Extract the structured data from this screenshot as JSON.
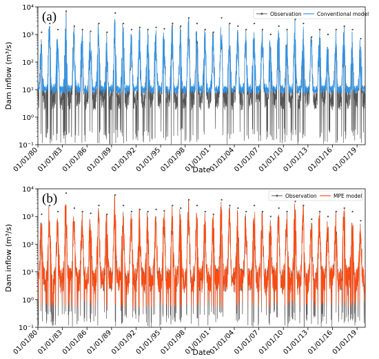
{
  "chart_data": [
    {
      "type": "line",
      "panel_label": "(a)",
      "xlabel": "Date",
      "ylabel": "Dam inflow (m³/s)",
      "y_scale": "log",
      "ylim": [
        0.1,
        10000
      ],
      "xlim": [
        "1980-01-01",
        "2019-12-31"
      ],
      "x_tick_labels": [
        "01/01/80",
        "01/01/83",
        "01/01/86",
        "01/01/89",
        "01/01/92",
        "01/01/95",
        "01/01/98",
        "01/01/01",
        "01/01/04",
        "01/01/07",
        "01/01/10",
        "01/01/13",
        "01/01/16",
        "01/01/19"
      ],
      "y_tick_labels": [
        "10⁻¹",
        "10⁰",
        "10¹",
        "10²",
        "10³",
        "10⁴"
      ],
      "grid": false,
      "legend_position": "top-right",
      "series": [
        {
          "name": "Observation",
          "color": "#555555",
          "marker": "dot"
        },
        {
          "name": "Conventional model",
          "color": "#2f95ea"
        }
      ],
      "annual_peaks": [
        {
          "year": 1980,
          "observation": 1200,
          "model": 900
        },
        {
          "year": 1981,
          "observation": 2500,
          "model": 2000
        },
        {
          "year": 1982,
          "observation": 1500,
          "model": 1200
        },
        {
          "year": 1983,
          "observation": 7000,
          "model": 5000
        },
        {
          "year": 1984,
          "observation": 2000,
          "model": 1800
        },
        {
          "year": 1985,
          "observation": 1500,
          "model": 1200
        },
        {
          "year": 1986,
          "observation": 1300,
          "model": 1000
        },
        {
          "year": 1987,
          "observation": 2500,
          "model": 2000
        },
        {
          "year": 1988,
          "observation": 1200,
          "model": 900
        },
        {
          "year": 1989,
          "observation": 6000,
          "model": 4500
        },
        {
          "year": 1990,
          "observation": 2500,
          "model": 2000
        },
        {
          "year": 1991,
          "observation": 1500,
          "model": 1000
        },
        {
          "year": 1992,
          "observation": 1800,
          "model": 1500
        },
        {
          "year": 1993,
          "observation": 1500,
          "model": 1200
        },
        {
          "year": 1994,
          "observation": 1800,
          "model": 1500
        },
        {
          "year": 1995,
          "observation": 1600,
          "model": 1300
        },
        {
          "year": 1996,
          "observation": 2500,
          "model": 2000
        },
        {
          "year": 1997,
          "observation": 2000,
          "model": 1600
        },
        {
          "year": 1998,
          "observation": 4000,
          "model": 3500
        },
        {
          "year": 1999,
          "observation": 2500,
          "model": 2000
        },
        {
          "year": 2000,
          "observation": 1500,
          "model": 1200
        },
        {
          "year": 2001,
          "observation": 1200,
          "model": 1000
        },
        {
          "year": 2002,
          "observation": 4000,
          "model": 3000
        },
        {
          "year": 2003,
          "observation": 2500,
          "model": 2000
        },
        {
          "year": 2004,
          "observation": 2000,
          "model": 1500
        },
        {
          "year": 2005,
          "observation": 1500,
          "model": 1200
        },
        {
          "year": 2006,
          "observation": 2500,
          "model": 2000
        },
        {
          "year": 2007,
          "observation": 1500,
          "model": 1200
        },
        {
          "year": 2008,
          "observation": 1000,
          "model": 800
        },
        {
          "year": 2009,
          "observation": 2000,
          "model": 1500
        },
        {
          "year": 2010,
          "observation": 1500,
          "model": 1300
        },
        {
          "year": 2011,
          "observation": 3500,
          "model": 3000
        },
        {
          "year": 2012,
          "observation": 2500,
          "model": 2000
        },
        {
          "year": 2013,
          "observation": 800,
          "model": 700
        },
        {
          "year": 2014,
          "observation": 1500,
          "model": 1200
        },
        {
          "year": 2015,
          "observation": 1000,
          "model": 800
        },
        {
          "year": 2016,
          "observation": 1500,
          "model": 1200
        },
        {
          "year": 2017,
          "observation": 2000,
          "model": 1600
        },
        {
          "year": 2018,
          "observation": 1500,
          "model": 1200
        },
        {
          "year": 2019,
          "observation": 700,
          "model": 600
        }
      ],
      "typical_low_observation": 0.1,
      "typical_low_model": 7
    },
    {
      "type": "line",
      "panel_label": "(b)",
      "xlabel": "Date",
      "ylabel": "Dam inflow (m³/s)",
      "y_scale": "log",
      "ylim": [
        0.1,
        10000
      ],
      "xlim": [
        "1980-01-01",
        "2019-12-31"
      ],
      "x_tick_labels": [
        "01/01/80",
        "01/01/83",
        "01/01/86",
        "01/01/89",
        "01/01/92",
        "01/01/95",
        "01/01/98",
        "01/01/01",
        "01/01/04",
        "01/01/07",
        "01/01/10",
        "01/01/13",
        "01/01/16",
        "01/01/19"
      ],
      "y_tick_labels": [
        "10⁻¹",
        "10⁰",
        "10¹",
        "10²",
        "10³",
        "10⁴"
      ],
      "grid": false,
      "legend_position": "top-right",
      "series": [
        {
          "name": "Observation",
          "color": "#555555",
          "marker": "dot"
        },
        {
          "name": "MPE model",
          "color": "#ff4a10"
        }
      ],
      "annual_peaks": [
        {
          "year": 1980,
          "observation": 1200,
          "model": 1100
        },
        {
          "year": 1981,
          "observation": 2500,
          "model": 2300
        },
        {
          "year": 1982,
          "observation": 1500,
          "model": 1400
        },
        {
          "year": 1983,
          "observation": 7000,
          "model": 6000
        },
        {
          "year": 1984,
          "observation": 2000,
          "model": 1900
        },
        {
          "year": 1985,
          "observation": 1500,
          "model": 1400
        },
        {
          "year": 1986,
          "observation": 1300,
          "model": 1200
        },
        {
          "year": 1987,
          "observation": 2500,
          "model": 2300
        },
        {
          "year": 1988,
          "observation": 1200,
          "model": 1100
        },
        {
          "year": 1989,
          "observation": 6000,
          "model": 5500
        },
        {
          "year": 1990,
          "observation": 2500,
          "model": 2300
        },
        {
          "year": 1991,
          "observation": 1500,
          "model": 1300
        },
        {
          "year": 1992,
          "observation": 1800,
          "model": 1700
        },
        {
          "year": 1993,
          "observation": 1500,
          "model": 1400
        },
        {
          "year": 1994,
          "observation": 1800,
          "model": 1700
        },
        {
          "year": 1995,
          "observation": 1600,
          "model": 1500
        },
        {
          "year": 1996,
          "observation": 2500,
          "model": 2300
        },
        {
          "year": 1997,
          "observation": 2000,
          "model": 1900
        },
        {
          "year": 1998,
          "observation": 4000,
          "model": 3800
        },
        {
          "year": 1999,
          "observation": 2500,
          "model": 2300
        },
        {
          "year": 2000,
          "observation": 1500,
          "model": 1400
        },
        {
          "year": 2001,
          "observation": 1200,
          "model": 1100
        },
        {
          "year": 2002,
          "observation": 4000,
          "model": 3700
        },
        {
          "year": 2003,
          "observation": 2500,
          "model": 2300
        },
        {
          "year": 2004,
          "observation": 2000,
          "model": 1800
        },
        {
          "year": 2005,
          "observation": 1500,
          "model": 1400
        },
        {
          "year": 2006,
          "observation": 2500,
          "model": 2300
        },
        {
          "year": 2007,
          "observation": 1500,
          "model": 1400
        },
        {
          "year": 2008,
          "observation": 1000,
          "model": 900
        },
        {
          "year": 2009,
          "observation": 2000,
          "model": 1800
        },
        {
          "year": 2010,
          "observation": 1500,
          "model": 1400
        },
        {
          "year": 2011,
          "observation": 3500,
          "model": 3300
        },
        {
          "year": 2012,
          "observation": 2500,
          "model": 2300
        },
        {
          "year": 2013,
          "observation": 800,
          "model": 750
        },
        {
          "year": 2014,
          "observation": 1500,
          "model": 1400
        },
        {
          "year": 2015,
          "observation": 1000,
          "model": 900
        },
        {
          "year": 2016,
          "observation": 1500,
          "model": 1400
        },
        {
          "year": 2017,
          "observation": 2000,
          "model": 1900
        },
        {
          "year": 2018,
          "observation": 1500,
          "model": 1400
        },
        {
          "year": 2019,
          "observation": 700,
          "model": 650
        }
      ],
      "typical_low_observation": 0.1,
      "typical_low_model": 0.5
    }
  ]
}
